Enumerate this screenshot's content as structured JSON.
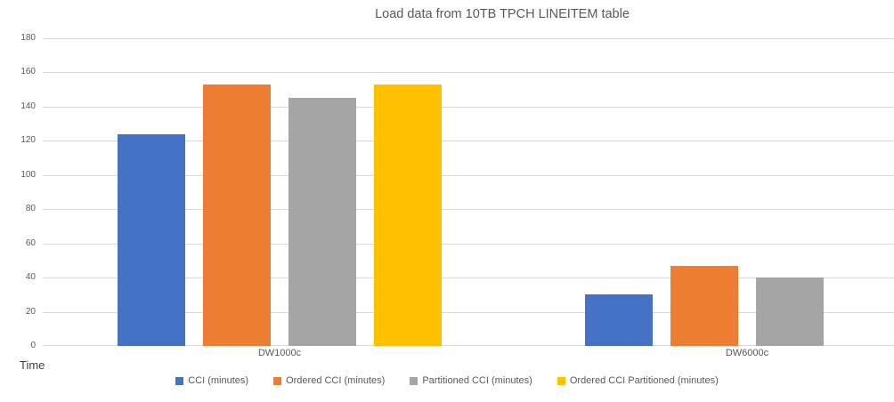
{
  "chart_data": {
    "type": "bar",
    "title": "Load data from 10TB TPCH LINEITEM table",
    "categories": [
      "DW1000c",
      "DW6000c"
    ],
    "series": [
      {
        "name": "CCI (minutes)",
        "color": "#4472C4",
        "values": [
          124,
          30
        ]
      },
      {
        "name": "Ordered CCI (minutes)",
        "color": "#ED7D31",
        "values": [
          153,
          47
        ]
      },
      {
        "name": "Partitioned CCI (minutes)",
        "color": "#A5A5A5",
        "values": [
          145,
          40
        ]
      },
      {
        "name": "Ordered CCI Partitioned (minutes)",
        "color": "#FFC000",
        "values": [
          153,
          null
        ]
      }
    ],
    "ylabel": "Time",
    "xlabel": "",
    "ylim": [
      0,
      180
    ],
    "yticks": [
      0,
      20,
      40,
      60,
      80,
      100,
      120,
      140,
      160,
      180
    ],
    "grid": true,
    "legend_position": "bottom",
    "colors": {
      "gridline": "#D9D9D9",
      "axis_text": "#595959",
      "title_text": "#595959"
    }
  }
}
